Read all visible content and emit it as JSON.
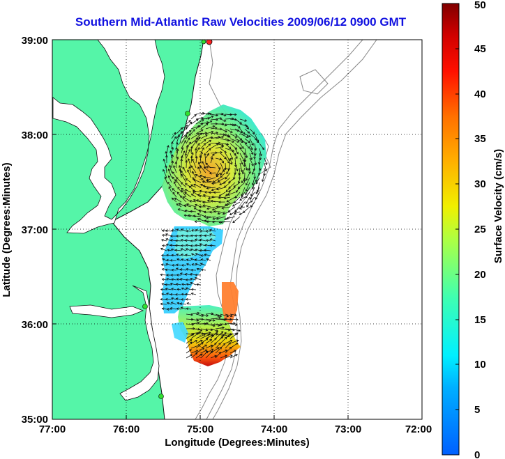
{
  "title": "Southern Mid-Atlantic Raw Velocities 2009/06/12 0900 GMT",
  "xlabel": "Longitude (Degrees:Minutes)",
  "ylabel": "Latitude (Degrees:Minutes)",
  "x_ticks": [
    "77:00",
    "76:00",
    "75:00",
    "74:00",
    "73:00",
    "72:00"
  ],
  "y_ticks": [
    "39:00",
    "38:00",
    "37:00",
    "36:00",
    "35:00"
  ],
  "colorbar": {
    "label": "Surface Velocity (cm/s)",
    "ticks": [
      "0",
      "5",
      "10",
      "15",
      "20",
      "25",
      "30",
      "35",
      "40",
      "45",
      "50"
    ],
    "range": [
      0,
      50
    ]
  },
  "extent": {
    "lon": [
      -77,
      -72
    ],
    "lat": [
      35,
      39
    ]
  },
  "colors": {
    "land": "#55f5a8",
    "title": "#1010e0",
    "coast": "#111111",
    "bathy": "#888888"
  }
}
